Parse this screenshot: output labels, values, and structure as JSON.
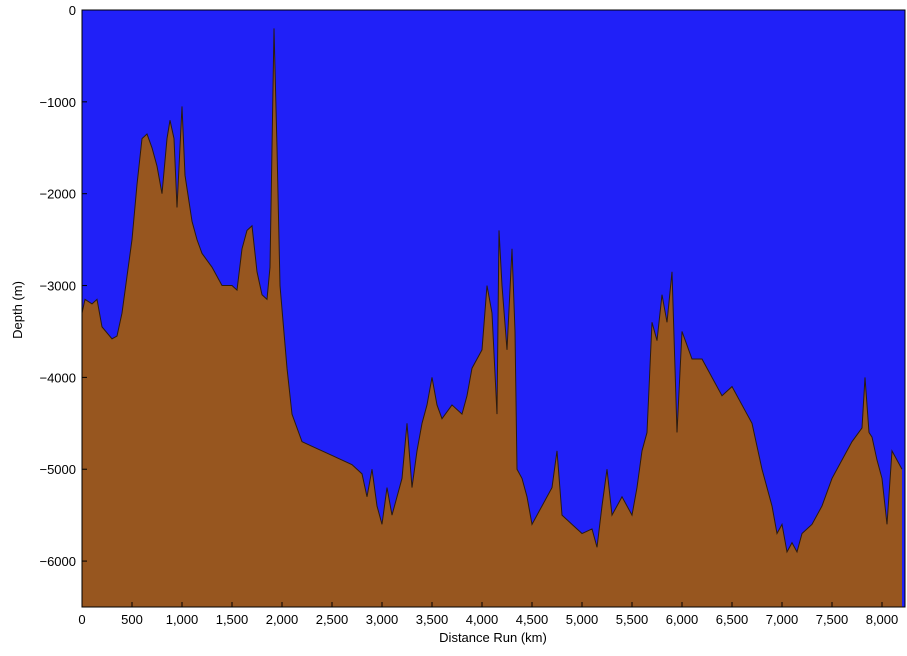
{
  "chart_data": {
    "type": "area",
    "x_label": "Distance Run (km)",
    "y_label": "Depth (m)",
    "color": "#97561f",
    "line_color": "#2a1a10",
    "background_color": "#2020f8",
    "xlim": [
      0,
      8230
    ],
    "ylim": [
      -6500,
      0
    ],
    "xticks": [
      0,
      500,
      {
        "value": 1000,
        "label": "1,000"
      },
      {
        "value": 1500,
        "label": "1,500"
      },
      {
        "value": 2000,
        "label": "2,000"
      },
      {
        "value": 2500,
        "label": "2,500"
      },
      {
        "value": 3000,
        "label": "3,000"
      },
      {
        "value": 3500,
        "label": "3,500"
      },
      {
        "value": 4000,
        "label": "4,000"
      },
      {
        "value": 4500,
        "label": "4,500"
      },
      {
        "value": 5000,
        "label": "5,000"
      },
      {
        "value": 5500,
        "label": "5,500"
      },
      {
        "value": 6000,
        "label": "6,000"
      },
      {
        "value": 6500,
        "label": "6,500"
      },
      {
        "value": 7000,
        "label": "7,000"
      },
      {
        "value": 7500,
        "label": "7,500"
      },
      {
        "value": 8000,
        "label": "8,000"
      }
    ],
    "yticks": [
      0,
      {
        "value": -1000,
        "label": "−1000"
      },
      {
        "value": -2000,
        "label": "−2000"
      },
      {
        "value": -3000,
        "label": "−3000"
      },
      {
        "value": -4000,
        "label": "−4000"
      },
      {
        "value": -5000,
        "label": "−5000"
      },
      {
        "value": -6000,
        "label": "−6000"
      }
    ],
    "x": [
      0,
      30,
      100,
      150,
      200,
      300,
      350,
      400,
      450,
      500,
      550,
      600,
      650,
      700,
      750,
      800,
      850,
      880,
      920,
      950,
      1000,
      1030,
      1100,
      1150,
      1200,
      1300,
      1400,
      1500,
      1550,
      1600,
      1650,
      1700,
      1750,
      1800,
      1850,
      1880,
      1920,
      1950,
      1980,
      2050,
      2100,
      2200,
      2300,
      2500,
      2700,
      2800,
      2850,
      2900,
      2950,
      3000,
      3050,
      3100,
      3200,
      3250,
      3300,
      3350,
      3400,
      3450,
      3500,
      3550,
      3600,
      3700,
      3800,
      3850,
      3900,
      4000,
      4050,
      4100,
      4150,
      4170,
      4200,
      4250,
      4300,
      4330,
      4350,
      4400,
      4450,
      4500,
      4600,
      4700,
      4750,
      4800,
      4900,
      5000,
      5100,
      5150,
      5200,
      5250,
      5300,
      5400,
      5500,
      5550,
      5600,
      5650,
      5700,
      5750,
      5800,
      5850,
      5900,
      5950,
      6000,
      6100,
      6200,
      6300,
      6400,
      6500,
      6600,
      6700,
      6800,
      6900,
      6950,
      7000,
      7050,
      7100,
      7150,
      7200,
      7300,
      7400,
      7500,
      7600,
      7700,
      7800,
      7830,
      7870,
      7900,
      7950,
      8000,
      8050,
      8100,
      8200
    ],
    "values": [
      -3300,
      -3150,
      -3200,
      -3150,
      -3450,
      -3580,
      -3550,
      -3300,
      -2900,
      -2500,
      -1900,
      -1400,
      -1350,
      -1500,
      -1700,
      -2000,
      -1400,
      -1200,
      -1400,
      -2150,
      -1050,
      -1800,
      -2300,
      -2500,
      -2650,
      -2800,
      -3000,
      -3000,
      -3050,
      -2600,
      -2400,
      -2350,
      -2850,
      -3100,
      -3150,
      -2800,
      -200,
      -1500,
      -3000,
      -3900,
      -4400,
      -4700,
      -4750,
      -4850,
      -4950,
      -5050,
      -5300,
      -5000,
      -5400,
      -5600,
      -5200,
      -5500,
      -5100,
      -4500,
      -5200,
      -4800,
      -4500,
      -4300,
      -4000,
      -4300,
      -4450,
      -4300,
      -4400,
      -4200,
      -3900,
      -3700,
      -3000,
      -3300,
      -4400,
      -2400,
      -3000,
      -3700,
      -2600,
      -3500,
      -5000,
      -5100,
      -5300,
      -5600,
      -5400,
      -5200,
      -4800,
      -5500,
      -5600,
      -5700,
      -5650,
      -5850,
      -5400,
      -5000,
      -5500,
      -5300,
      -5500,
      -5200,
      -4800,
      -4600,
      -3400,
      -3600,
      -3100,
      -3400,
      -2850,
      -4600,
      -3500,
      -3800,
      -3800,
      -4000,
      -4200,
      -4100,
      -4300,
      -4500,
      -5000,
      -5400,
      -5700,
      -5600,
      -5900,
      -5800,
      -5900,
      -5700,
      -5600,
      -5400,
      -5100,
      -4900,
      -4700,
      -4550,
      -4000,
      -4600,
      -4650,
      -4900,
      -5100,
      -5600,
      -4800,
      -5000
    ]
  }
}
